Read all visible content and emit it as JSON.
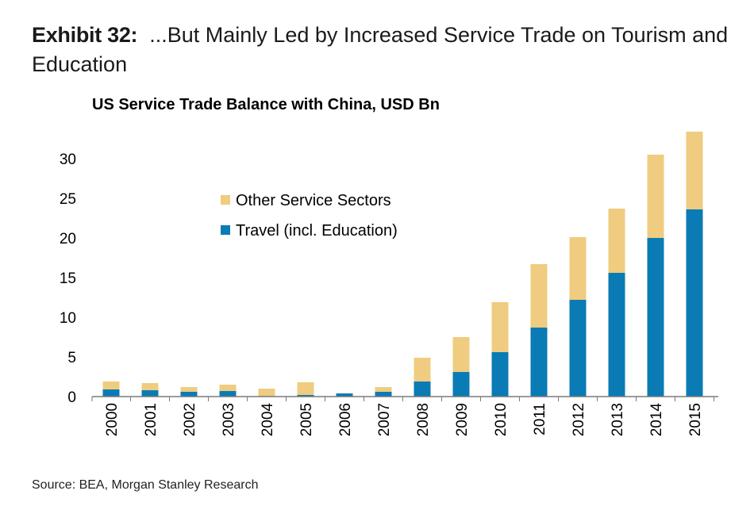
{
  "header": {
    "exhibit_label": "Exhibit 32:",
    "title": "...But Mainly Led by Increased Service Trade on Tourism and Education"
  },
  "chart_data": {
    "type": "bar",
    "stacked": true,
    "title": "US Service Trade Balance with China, USD Bn",
    "xlabel": "",
    "ylabel": "",
    "ylim": [
      0,
      35
    ],
    "yticks": [
      0,
      5,
      10,
      15,
      20,
      25,
      30
    ],
    "categories": [
      "2000",
      "2001",
      "2002",
      "2003",
      "2004",
      "2005",
      "2006",
      "2007",
      "2008",
      "2009",
      "2010",
      "2011",
      "2012",
      "2013",
      "2014",
      "2015"
    ],
    "series": [
      {
        "name": "Travel (incl. Education)",
        "color": "#0a7bb4",
        "values": [
          0.9,
          0.8,
          0.6,
          0.7,
          0.0,
          0.2,
          0.4,
          0.6,
          1.9,
          3.1,
          5.6,
          8.7,
          12.2,
          15.6,
          20.0,
          23.6
        ]
      },
      {
        "name": "Other Service Sectors",
        "color": "#efcc7f",
        "values": [
          1.0,
          0.9,
          0.6,
          0.8,
          1.0,
          1.6,
          0.0,
          0.6,
          3.0,
          4.4,
          6.3,
          8.0,
          7.9,
          8.1,
          10.5,
          9.8
        ]
      }
    ],
    "legend_order": [
      "Other Service Sectors",
      "Travel (incl. Education)"
    ],
    "legend_position": "top-left inside plot"
  },
  "footer": {
    "source": "Source: BEA, Morgan Stanley Research"
  }
}
